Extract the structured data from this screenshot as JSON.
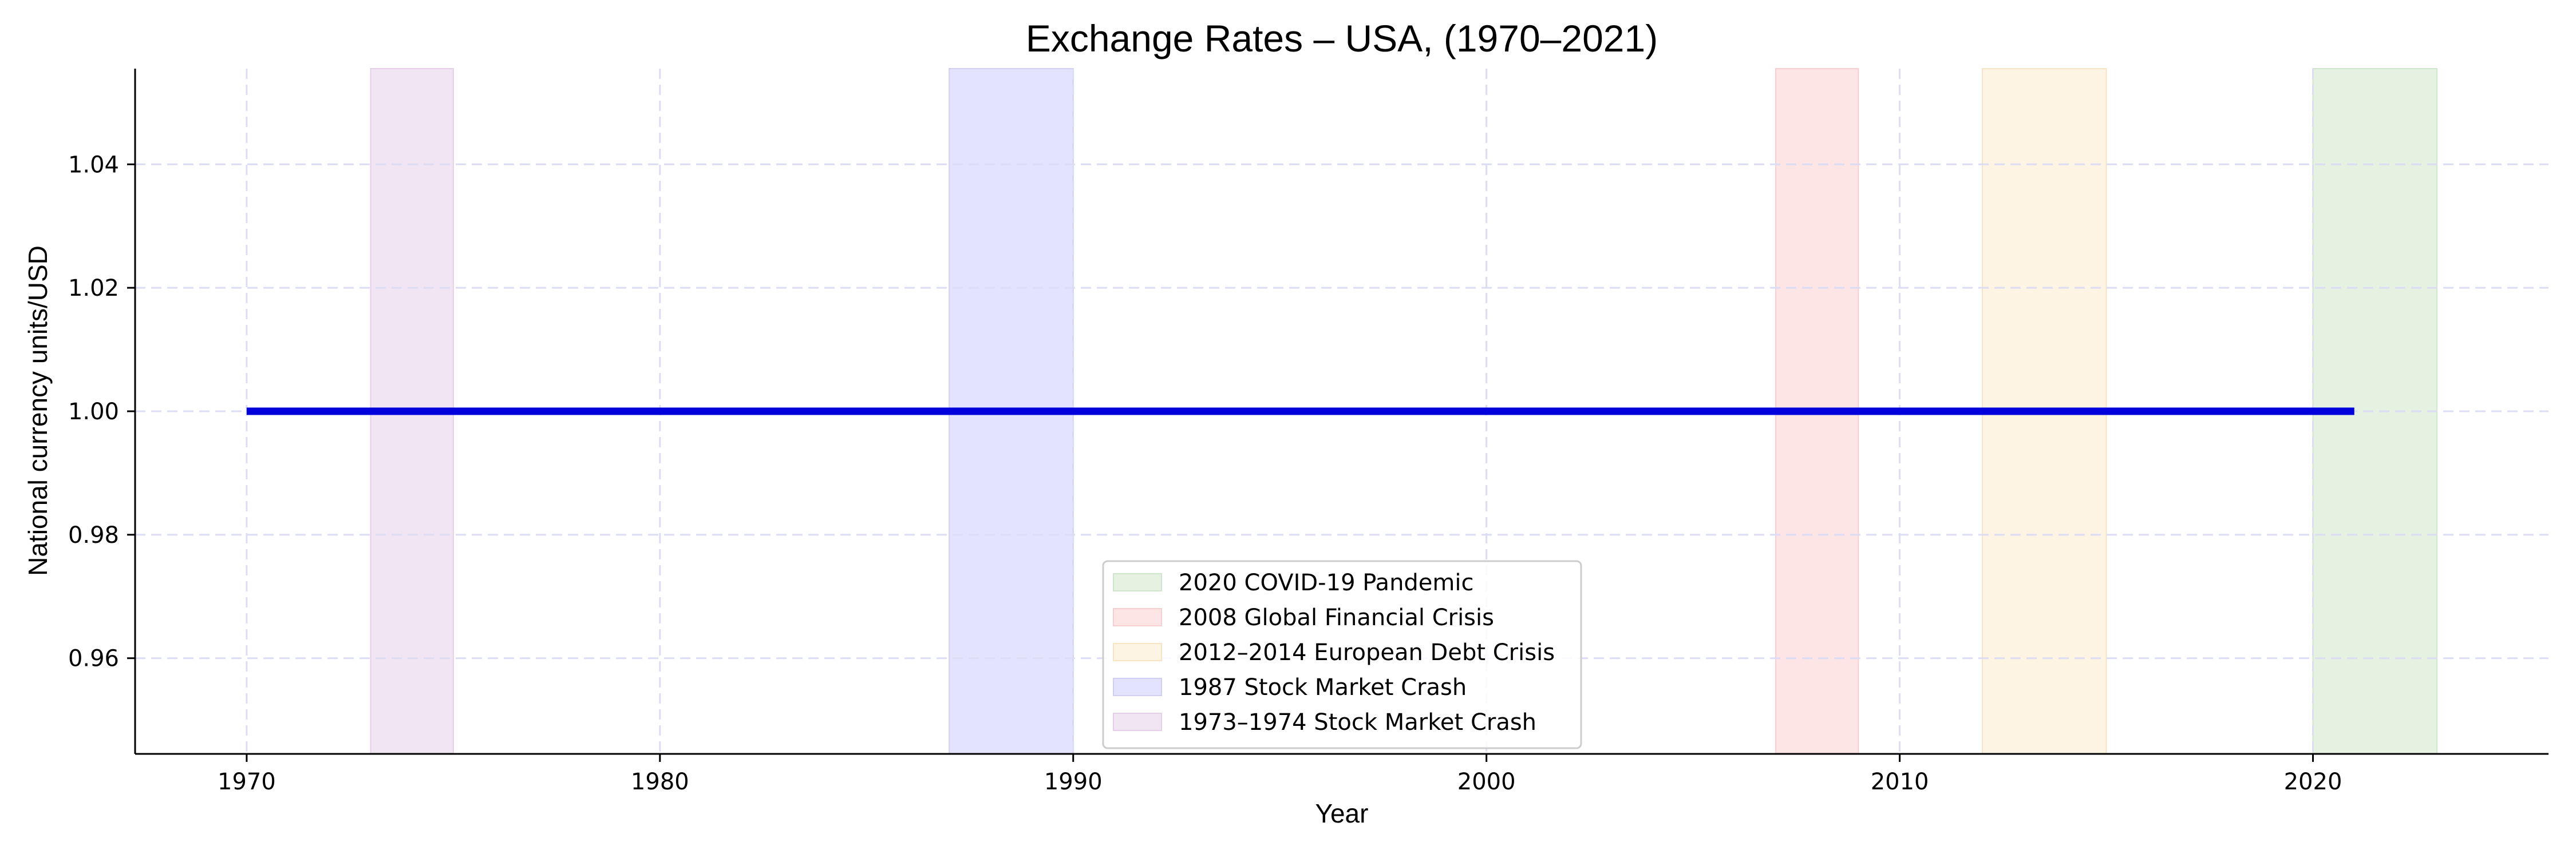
{
  "chart_data": {
    "type": "line",
    "title": "Exchange Rates – USA, (1970–2021)",
    "xlabel": "Year",
    "ylabel": "National currency units/USD",
    "xlim": [
      1967.3,
      2025.7
    ],
    "ylim": [
      0.9445,
      1.0555
    ],
    "x_ticks": [
      1970,
      1980,
      1990,
      2000,
      2010,
      2020
    ],
    "y_ticks": [
      0.96,
      0.98,
      1.0,
      1.02,
      1.04
    ],
    "y_tick_labels": [
      "0.96",
      "0.98",
      "1.00",
      "1.02",
      "1.04"
    ],
    "grid": true,
    "legend_position": "lower-center",
    "series": [
      {
        "color": "#0000dd",
        "x": [
          1970,
          1971,
          1972,
          1973,
          1974,
          1975,
          1976,
          1977,
          1978,
          1979,
          1980,
          1981,
          1982,
          1983,
          1984,
          1985,
          1986,
          1987,
          1988,
          1989,
          1990,
          1991,
          1992,
          1993,
          1994,
          1995,
          1996,
          1997,
          1998,
          1999,
          2000,
          2001,
          2002,
          2003,
          2004,
          2005,
          2006,
          2007,
          2008,
          2009,
          2010,
          2011,
          2012,
          2013,
          2014,
          2015,
          2016,
          2017,
          2018,
          2019,
          2020,
          2021
        ],
        "y": [
          1.0,
          1.0,
          1.0,
          1.0,
          1.0,
          1.0,
          1.0,
          1.0,
          1.0,
          1.0,
          1.0,
          1.0,
          1.0,
          1.0,
          1.0,
          1.0,
          1.0,
          1.0,
          1.0,
          1.0,
          1.0,
          1.0,
          1.0,
          1.0,
          1.0,
          1.0,
          1.0,
          1.0,
          1.0,
          1.0,
          1.0,
          1.0,
          1.0,
          1.0,
          1.0,
          1.0,
          1.0,
          1.0,
          1.0,
          1.0,
          1.0,
          1.0,
          1.0,
          1.0,
          1.0,
          1.0,
          1.0,
          1.0,
          1.0,
          1.0,
          1.0,
          1.0
        ]
      }
    ],
    "shaded_periods": [
      {
        "label": "2020 COVID-19 Pandemic",
        "start": 2020,
        "end": 2023,
        "color": "#e5f2e2",
        "edge": "#cfe6cc"
      },
      {
        "label": "2008 Global Financial Crisis",
        "start": 2007,
        "end": 2009,
        "color": "#fde5e6",
        "edge": "#f8cfd1"
      },
      {
        "label": "2012–2014 European Debt Crisis",
        "start": 2012,
        "end": 2015,
        "color": "#fdf4e3",
        "edge": "#f6e4c4"
      },
      {
        "label": "1987 Stock Market Crash",
        "start": 1987,
        "end": 1990,
        "color": "#e3e3fd",
        "edge": "#cfcff4"
      },
      {
        "label": "1973–1974 Stock Market Crash",
        "start": 1973,
        "end": 1975,
        "color": "#f2e5f3",
        "edge": "#e5cfe8"
      }
    ],
    "grid_color": "#dcdcf5"
  }
}
